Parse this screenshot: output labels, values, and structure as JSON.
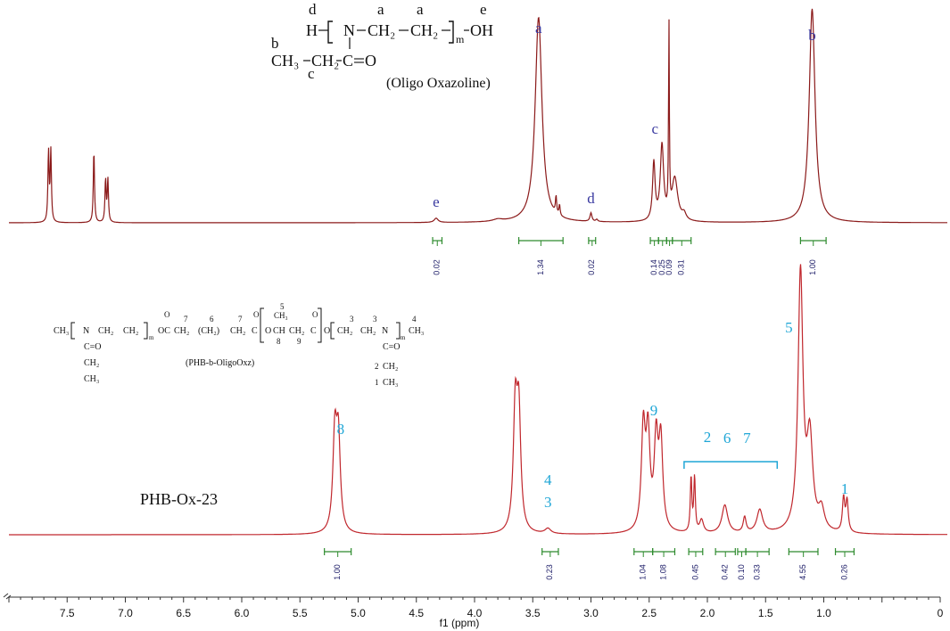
{
  "chart_data": [
    {
      "type": "line",
      "name_in_figure": "top spectrum",
      "compound_label": "(Oligo Oxazoline)",
      "structure": {
        "labels": {
          "d": "d",
          "a1": "a",
          "a2": "a",
          "e": "e",
          "b": "b",
          "c": "c"
        },
        "line1": [
          "H",
          "N",
          "CH₂",
          "CH₂",
          "m",
          "OH"
        ],
        "line2": [
          "CH₃",
          "CH₂",
          "C",
          "O"
        ]
      },
      "peak_labels": [
        {
          "text": "e",
          "ppm": 4.33
        },
        {
          "text": "a",
          "ppm": 3.45
        },
        {
          "text": "d",
          "ppm": 3.0
        },
        {
          "text": "c",
          "ppm": 2.45
        },
        {
          "text": "b",
          "ppm": 1.1
        }
      ],
      "integrals": [
        {
          "value": "0.02",
          "from": 4.36,
          "to": 4.28
        },
        {
          "value": "1.34",
          "from": 3.62,
          "to": 3.24
        },
        {
          "value": "0.02",
          "from": 3.02,
          "to": 2.96
        },
        {
          "value": "0.14",
          "from": 2.49,
          "to": 2.42
        },
        {
          "value": "0.25",
          "from": 2.42,
          "to": 2.35
        },
        {
          "value": "0.09",
          "from": 2.35,
          "to": 2.3
        },
        {
          "value": "0.31",
          "from": 2.3,
          "to": 2.14
        },
        {
          "value": "1.00",
          "from": 1.2,
          "to": 0.98
        }
      ],
      "peaks": [
        {
          "ppm": 7.66,
          "h": 0.33,
          "w": 0.006
        },
        {
          "ppm": 7.64,
          "h": 0.33,
          "w": 0.006
        },
        {
          "ppm": 7.27,
          "h": 0.34,
          "w": 0.006
        },
        {
          "ppm": 7.17,
          "h": 0.2,
          "w": 0.006
        },
        {
          "ppm": 7.15,
          "h": 0.2,
          "w": 0.006
        },
        {
          "ppm": 4.33,
          "h": 0.02,
          "w": 0.02
        },
        {
          "ppm": 3.8,
          "h": 0.01,
          "w": 0.05
        },
        {
          "ppm": 3.45,
          "h": 0.96,
          "w": 0.035
        },
        {
          "ppm": 3.3,
          "h": 0.08,
          "w": 0.006
        },
        {
          "ppm": 3.27,
          "h": 0.05,
          "w": 0.006
        },
        {
          "ppm": 3.0,
          "h": 0.04,
          "w": 0.01
        },
        {
          "ppm": 2.95,
          "h": 0.01,
          "w": 0.01
        },
        {
          "ppm": 2.46,
          "h": 0.27,
          "w": 0.013
        },
        {
          "ppm": 2.39,
          "h": 0.35,
          "w": 0.017
        },
        {
          "ppm": 2.33,
          "h": 0.88,
          "w": 0.004
        },
        {
          "ppm": 2.28,
          "h": 0.2,
          "w": 0.03
        },
        {
          "ppm": 2.2,
          "h": 0.03,
          "w": 0.02
        },
        {
          "ppm": 1.1,
          "h": 1.0,
          "w": 0.03
        }
      ]
    },
    {
      "type": "line",
      "name_in_figure": "PHB-Ox-23",
      "sample_label": "PHB-Ox-23",
      "compound_label": "(PHB-b-OligoOxz)",
      "structure": {
        "numbers": [
          "7",
          "6",
          "7",
          "5",
          "8",
          "9",
          "3",
          "3",
          "4",
          "2",
          "1"
        ],
        "line1": [
          "CH₃",
          "N",
          "CH₂",
          "CH₂",
          "m",
          "OC",
          "CH₂",
          "(CH₂)",
          "CH₂",
          "C",
          "O",
          "CH",
          "CH₂",
          "C",
          "O",
          "CH₂",
          "CH₂",
          "N",
          "m",
          "CH₃"
        ],
        "branch_left": [
          "C=O",
          "CH₂",
          "CH₃"
        ],
        "branch_right": [
          "C=O",
          "CH₂",
          "CH₃"
        ]
      },
      "peak_labels": [
        {
          "text": "8",
          "ppm": 5.15
        },
        {
          "text": "4",
          "ppm": 3.37
        },
        {
          "text": "3",
          "ppm": 3.37
        },
        {
          "text": "9",
          "ppm": 2.46
        },
        {
          "text": "2",
          "ppm": 2.0
        },
        {
          "text": "6",
          "ppm": 1.83
        },
        {
          "text": "7",
          "ppm": 1.66
        },
        {
          "text": "5",
          "ppm": 1.3
        },
        {
          "text": "1",
          "ppm": 0.82
        }
      ],
      "bracket": {
        "from": 2.2,
        "to": 1.4
      },
      "integrals": [
        {
          "value": "1.00",
          "from": 5.29,
          "to": 5.06
        },
        {
          "value": "0.23",
          "from": 3.42,
          "to": 3.28
        },
        {
          "value": "1.04",
          "from": 2.63,
          "to": 2.47
        },
        {
          "value": "1.08",
          "from": 2.47,
          "to": 2.28
        },
        {
          "value": "0.45",
          "from": 2.16,
          "to": 2.04
        },
        {
          "value": "0.42",
          "from": 1.93,
          "to": 1.76
        },
        {
          "value": "0.10",
          "from": 1.74,
          "to": 1.67
        },
        {
          "value": "0.33",
          "from": 1.67,
          "to": 1.47
        },
        {
          "value": "4.55",
          "from": 1.3,
          "to": 1.05
        },
        {
          "value": "0.26",
          "from": 0.9,
          "to": 0.74
        }
      ],
      "peaks": [
        {
          "ppm": 5.2,
          "h": 0.37,
          "w": 0.02
        },
        {
          "ppm": 5.17,
          "h": 0.35,
          "w": 0.02
        },
        {
          "ppm": 3.65,
          "h": 0.46,
          "w": 0.02
        },
        {
          "ppm": 3.62,
          "h": 0.44,
          "w": 0.02
        },
        {
          "ppm": 3.37,
          "h": 0.02,
          "w": 0.03
        },
        {
          "ppm": 2.55,
          "h": 0.39,
          "w": 0.02
        },
        {
          "ppm": 2.51,
          "h": 0.36,
          "w": 0.02
        },
        {
          "ppm": 2.44,
          "h": 0.34,
          "w": 0.02
        },
        {
          "ppm": 2.4,
          "h": 0.34,
          "w": 0.02
        },
        {
          "ppm": 2.14,
          "h": 0.21,
          "w": 0.008
        },
        {
          "ppm": 2.11,
          "h": 0.21,
          "w": 0.008
        },
        {
          "ppm": 2.05,
          "h": 0.05,
          "w": 0.02
        },
        {
          "ppm": 1.85,
          "h": 0.11,
          "w": 0.03
        },
        {
          "ppm": 1.68,
          "h": 0.06,
          "w": 0.015
        },
        {
          "ppm": 1.55,
          "h": 0.09,
          "w": 0.03
        },
        {
          "ppm": 1.2,
          "h": 1.0,
          "w": 0.025
        },
        {
          "ppm": 1.12,
          "h": 0.35,
          "w": 0.03
        },
        {
          "ppm": 1.02,
          "h": 0.08,
          "w": 0.03
        },
        {
          "ppm": 0.83,
          "h": 0.13,
          "w": 0.012
        },
        {
          "ppm": 0.8,
          "h": 0.12,
          "w": 0.012
        }
      ]
    }
  ],
  "axis": {
    "xlabel": "f1 (ppm)",
    "xlim": [
      8.0,
      0.0
    ],
    "ticks": [
      "7.5",
      "7.0",
      "6.5",
      "6.0",
      "5.5",
      "5.0",
      "4.5",
      "4.0",
      "3.5",
      "3.0",
      "2.5",
      "2.0",
      "1.5",
      "1.0",
      "0"
    ],
    "tick_values": [
      7.5,
      7.0,
      6.5,
      6.0,
      5.5,
      5.0,
      4.5,
      4.0,
      3.5,
      3.0,
      2.5,
      2.0,
      1.5,
      1.0,
      0.0
    ],
    "reversed": true
  },
  "colors": {
    "spectrum_top": "#8b1a1a",
    "spectrum_bottom": "#c0272d",
    "integral": "#2e8b2e",
    "label_top": "#3a3aa0",
    "label_bottom": "#1fa6d6",
    "integral_text": "#1a1a66"
  }
}
